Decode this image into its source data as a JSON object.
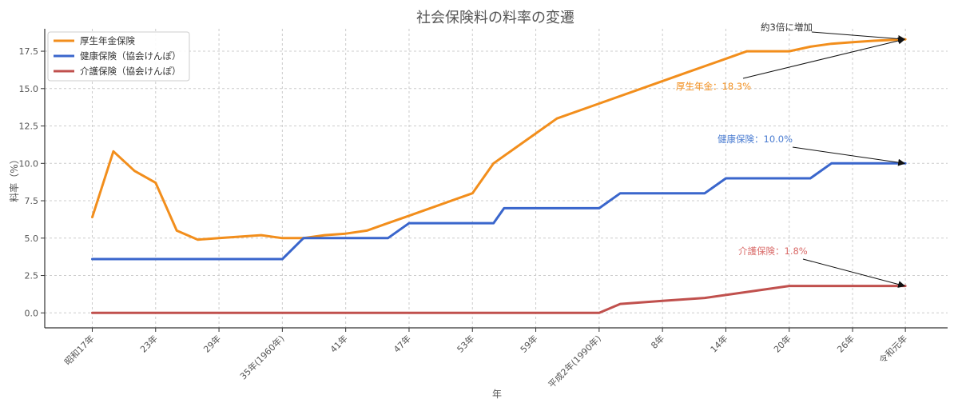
{
  "chart_data": {
    "type": "line",
    "title": "社会保険料の料率の変遷",
    "xlabel": "年",
    "ylabel": "料率（%）",
    "ylim": [
      -1,
      19
    ],
    "yticks": [
      0.0,
      2.5,
      5.0,
      7.5,
      10.0,
      12.5,
      15.0,
      17.5
    ],
    "ytick_labels": [
      "0.0",
      "2.5",
      "5.0",
      "7.5",
      "10.0",
      "12.5",
      "15.0",
      "17.5"
    ],
    "xlim": [
      1937.5,
      2023
    ],
    "xticks": [
      1942,
      1948,
      1954,
      1960,
      1966,
      1972,
      1978,
      1984,
      1990,
      1996,
      2002,
      2008,
      2014,
      2019
    ],
    "xtick_labels": [
      "昭和17年",
      "23年",
      "29年",
      "35年(1960年)",
      "41年",
      "47年",
      "53年",
      "59年",
      "平成2年(1990年)",
      "8年",
      "14年",
      "20年",
      "26年",
      "令和元年"
    ],
    "grid": true,
    "legend_position": "top-left",
    "series": [
      {
        "name": "厚生年金保険",
        "color": "#f28e1c",
        "points": [
          [
            1942,
            6.4
          ],
          [
            1944,
            10.8
          ],
          [
            1946,
            9.5
          ],
          [
            1948,
            8.7
          ],
          [
            1950,
            5.5
          ],
          [
            1952,
            4.9
          ],
          [
            1954,
            5.0
          ],
          [
            1958,
            5.2
          ],
          [
            1960,
            5.0
          ],
          [
            1962,
            5.0
          ],
          [
            1964,
            5.2
          ],
          [
            1966,
            5.3
          ],
          [
            1968,
            5.5
          ],
          [
            1970,
            6.0
          ],
          [
            1972,
            6.5
          ],
          [
            1974,
            7.0
          ],
          [
            1976,
            7.5
          ],
          [
            1978,
            8.0
          ],
          [
            1980,
            10.0
          ],
          [
            1982,
            11.0
          ],
          [
            1984,
            12.0
          ],
          [
            1986,
            13.0
          ],
          [
            1990,
            14.0
          ],
          [
            1994,
            15.0
          ],
          [
            1998,
            16.0
          ],
          [
            2002,
            17.0
          ],
          [
            2004,
            17.5
          ],
          [
            2008,
            17.5
          ],
          [
            2010,
            17.8
          ],
          [
            2012,
            18.0
          ],
          [
            2014,
            18.1
          ],
          [
            2016,
            18.2
          ],
          [
            2019,
            18.3
          ]
        ]
      },
      {
        "name": "健康保険（協会けんぽ）",
        "color": "#3a66cc",
        "points": [
          [
            1942,
            3.6
          ],
          [
            1960,
            3.6
          ],
          [
            1962,
            5.0
          ],
          [
            1968,
            5.0
          ],
          [
            1970,
            5.0
          ],
          [
            1972,
            6.0
          ],
          [
            1980,
            6.0
          ],
          [
            1981,
            7.0
          ],
          [
            1990,
            7.0
          ],
          [
            1992,
            8.0
          ],
          [
            2000,
            8.0
          ],
          [
            2002,
            9.0
          ],
          [
            2008,
            9.0
          ],
          [
            2010,
            9.0
          ],
          [
            2012,
            10.0
          ],
          [
            2019,
            10.0
          ]
        ]
      },
      {
        "name": "介護保険（協会けんぽ）",
        "color": "#c0504d",
        "points": [
          [
            1942,
            0.0
          ],
          [
            1990,
            0.0
          ],
          [
            1992,
            0.6
          ],
          [
            1996,
            0.8
          ],
          [
            2000,
            1.0
          ],
          [
            2004,
            1.4
          ],
          [
            2008,
            1.8
          ],
          [
            2012,
            1.8
          ],
          [
            2019,
            1.8
          ]
        ]
      }
    ],
    "annotations": [
      {
        "text": "約3倍に増加",
        "color": "#333333",
        "point": [
          2019,
          18.3
        ]
      },
      {
        "text": "厚生年金：18.3%",
        "color": "#f28e1c",
        "point": [
          2019,
          18.3
        ]
      },
      {
        "text": "健康保険：10.0%",
        "color": "#4a7cd1",
        "point": [
          2019,
          10.0
        ]
      },
      {
        "text": "介護保険：1.8%",
        "color": "#d96a68",
        "point": [
          2019,
          1.8
        ]
      }
    ]
  }
}
